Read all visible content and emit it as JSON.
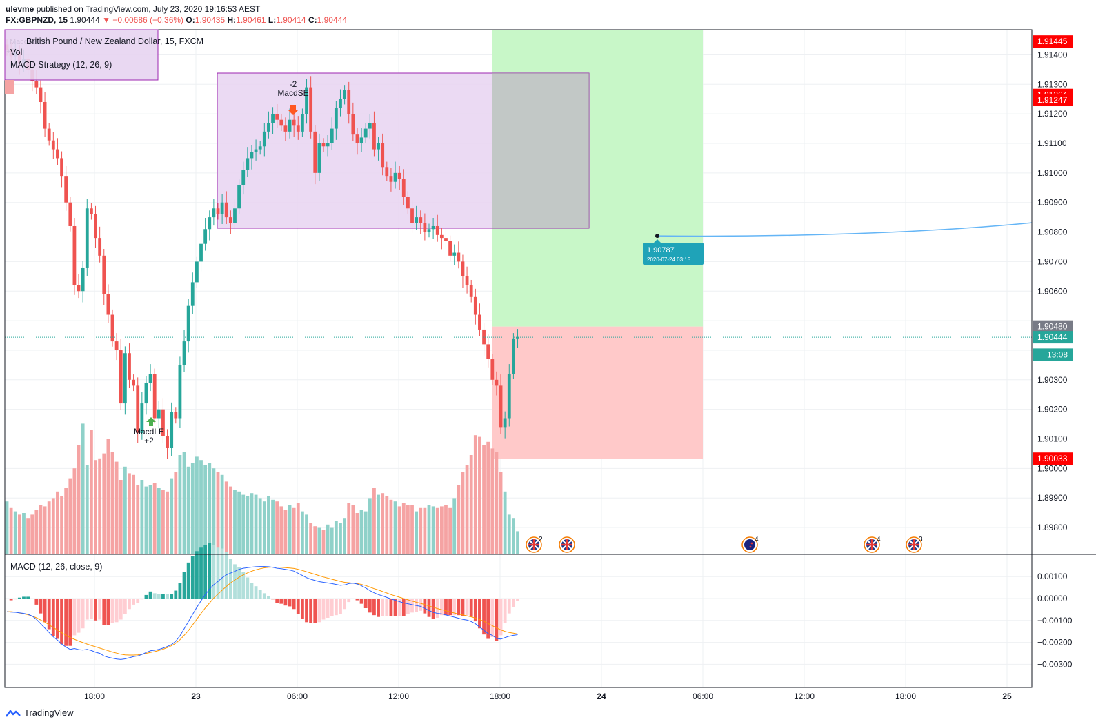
{
  "header": {
    "username": "ulevme",
    "published_text": "published on TradingView.com, July 23, 2020 19:16:53 AEST",
    "symbol": "FX:GBPNZD, 15",
    "last": "1.90444",
    "change": "▼ −0.00686 (−0.36%)",
    "o_label": "O:",
    "o_value": "1.90435",
    "h_label": "H:",
    "h_value": "1.90461",
    "l_label": "L:",
    "l_value": "1.90414",
    "c_label": "C:",
    "c_value": "1.90444"
  },
  "legend": {
    "instrument": "British Pound / New Zealand Dollar, 15, FXCM",
    "vol": "Vol",
    "strategy": "MACD Strategy (12, 26, 9)",
    "macd": "MACD (12, 26, close, 9)"
  },
  "chart_data": [
    {
      "type": "candlestick",
      "title": "British Pound / New Zealand Dollar, 15, FXCM",
      "y_ticks": [
        "1.91400",
        "1.91300",
        "1.91200",
        "1.91100",
        "1.91000",
        "1.90900",
        "1.90800",
        "1.90700",
        "1.90600",
        "1.90300",
        "1.90200",
        "1.90100",
        "1.90000",
        "1.89900",
        "1.89800"
      ],
      "x_ticks": [
        "18:00",
        "23",
        "06:00",
        "12:00",
        "18:00",
        "24",
        "06:00",
        "12:00",
        "18:00",
        "25"
      ],
      "price_labels": [
        {
          "text": "1.91445",
          "value": 1.91445,
          "color": "#ff0000"
        },
        {
          "text": "1.91264",
          "value": 1.91264,
          "color": "#ff0000"
        },
        {
          "text": "1.91247",
          "value": 1.91247,
          "color": "#ff0000"
        },
        {
          "text": "1.90480",
          "value": 1.9048,
          "color": "#787b86"
        },
        {
          "text": "1.90444",
          "value": 1.90444,
          "color": "#26a69a"
        },
        {
          "text": "13:08",
          "value": 1.90385,
          "color": "#26a69a"
        },
        {
          "text": "1.90033",
          "value": 1.90033,
          "color": "#ff0000"
        }
      ],
      "current_price": 1.90444,
      "closes": [
        1.91415,
        1.91395,
        1.9141,
        1.9137,
        1.91385,
        1.9135,
        1.9131,
        1.9129,
        1.9124,
        1.9115,
        1.9111,
        1.9108,
        1.9105,
        1.9099,
        1.909,
        1.9082,
        1.9062,
        1.906,
        1.9068,
        1.9088,
        1.9086,
        1.9078,
        1.9072,
        1.9059,
        1.9052,
        1.9043,
        1.904,
        1.9022,
        1.9039,
        1.903,
        1.9028,
        1.9012,
        1.9022,
        1.9029,
        1.9032,
        1.9017,
        1.902,
        1.9011,
        1.9007,
        1.9019,
        1.9017,
        1.9035,
        1.9043,
        1.9055,
        1.9063,
        1.907,
        1.9076,
        1.9081,
        1.9085,
        1.9088,
        1.9086,
        1.909,
        1.9085,
        1.9083,
        1.9088,
        1.9096,
        1.9101,
        1.9105,
        1.9107,
        1.9108,
        1.9109,
        1.9114,
        1.9117,
        1.912,
        1.9118,
        1.9116,
        1.9114,
        1.9118,
        1.9116,
        1.9114,
        1.912,
        1.9129,
        1.9114,
        1.91,
        1.911,
        1.9109,
        1.911,
        1.9115,
        1.9122,
        1.9125,
        1.9128,
        1.912,
        1.9113,
        1.911,
        1.9112,
        1.9115,
        1.9117,
        1.9108,
        1.911,
        1.9102,
        1.9099,
        1.9097,
        1.91,
        1.9098,
        1.9092,
        1.9088,
        1.9083,
        1.9085,
        1.9083,
        1.908,
        1.9081,
        1.9082,
        1.9079,
        1.9078,
        1.9077,
        1.9072,
        1.9073,
        1.907,
        1.9065,
        1.9062,
        1.9058,
        1.9052,
        1.9047,
        1.9042,
        1.9037,
        1.903,
        1.9028,
        1.9014,
        1.9017,
        1.9032,
        1.9044,
        1.90444
      ],
      "volumes": [
        160,
        140,
        130,
        120,
        125,
        110,
        120,
        135,
        150,
        145,
        160,
        170,
        190,
        175,
        200,
        230,
        260,
        330,
        395,
        270,
        375,
        285,
        290,
        305,
        350,
        310,
        280,
        225,
        265,
        245,
        240,
        210,
        225,
        205,
        210,
        215,
        200,
        195,
        190,
        230,
        250,
        300,
        310,
        265,
        275,
        295,
        285,
        270,
        275,
        260,
        250,
        240,
        220,
        205,
        195,
        190,
        180,
        175,
        185,
        180,
        170,
        160,
        175,
        165,
        160,
        145,
        135,
        150,
        140,
        155,
        130,
        120,
        95,
        85,
        80,
        75,
        90,
        80,
        100,
        95,
        110,
        155,
        150,
        125,
        135,
        130,
        170,
        200,
        180,
        185,
        175,
        165,
        160,
        145,
        155,
        150,
        150,
        130,
        140,
        140,
        150,
        145,
        140,
        145,
        150,
        140,
        170,
        210,
        250,
        270,
        300,
        360,
        355,
        330,
        340,
        320,
        310,
        250,
        190,
        120,
        110,
        70
      ],
      "macd": [
        -0.0006,
        -0.00062,
        -0.00063,
        -0.00065,
        -0.00068,
        -0.00072,
        -0.0008,
        -0.00095,
        -0.00115,
        -0.00135,
        -0.00155,
        -0.00175,
        -0.0019,
        -0.00208,
        -0.00222,
        -0.00232,
        -0.00228,
        -0.00233,
        -0.00235,
        -0.00232,
        -0.00237,
        -0.00245,
        -0.0025,
        -0.00262,
        -0.00268,
        -0.00272,
        -0.00276,
        -0.00278,
        -0.00275,
        -0.0027,
        -0.00265,
        -0.00262,
        -0.00255,
        -0.00246,
        -0.00238,
        -0.00236,
        -0.00232,
        -0.00226,
        -0.00219,
        -0.0021,
        -0.00195,
        -0.0017,
        -0.00138,
        -0.00105,
        -0.00072,
        -0.0004,
        -0.0001,
        0.00018,
        0.00043,
        0.00063,
        0.00078,
        0.00095,
        0.00108,
        0.00116,
        0.00124,
        0.00133,
        0.00138,
        0.00141,
        0.00143,
        0.00145,
        0.00146,
        0.00146,
        0.00145,
        0.00142,
        0.00138,
        0.00136,
        0.00133,
        0.0013,
        0.00125,
        0.00115,
        0.00105,
        0.00095,
        0.00088,
        0.00082,
        0.00077,
        0.00074,
        0.00071,
        0.00068,
        0.00064,
        0.0006,
        0.00062,
        0.00068,
        0.0007,
        0.00066,
        0.00058,
        0.00048,
        0.00036,
        0.00026,
        0.00018,
        0.00012,
        5e-05,
        -2e-05,
        -8e-05,
        -0.00014,
        -0.0002,
        -0.00024,
        -0.00028,
        -0.00032,
        -0.00036,
        -0.00045,
        -0.00055,
        -0.00063,
        -0.00068,
        -0.0007,
        -0.00075,
        -0.0008,
        -0.00085,
        -0.0009,
        -0.00095,
        -0.00098,
        -0.00105,
        -0.00115,
        -0.0013,
        -0.00145,
        -0.0016,
        -0.00168,
        -0.00182,
        -0.00185,
        -0.00178,
        -0.00172,
        -0.00168,
        -0.00165
      ],
      "signal": [
        -0.0006,
        -0.0006,
        -0.00062,
        -0.00066,
        -0.0007,
        -0.00074,
        -0.0008,
        -0.00088,
        -0.00098,
        -0.00108,
        -0.0012,
        -0.00132,
        -0.00144,
        -0.00156,
        -0.00168,
        -0.00178,
        -0.00186,
        -0.00194,
        -0.00201,
        -0.00208,
        -0.00214,
        -0.0022,
        -0.00226,
        -0.00232,
        -0.00238,
        -0.00244,
        -0.00249,
        -0.00254,
        -0.00257,
        -0.00258,
        -0.00258,
        -0.00257,
        -0.00254,
        -0.0025,
        -0.00246,
        -0.00242,
        -0.00237,
        -0.00231,
        -0.00224,
        -0.00215,
        -0.00204,
        -0.00188,
        -0.00168,
        -0.00146,
        -0.0012,
        -0.00094,
        -0.00068,
        -0.00043,
        -0.0002,
        2e-05,
        0.0002,
        0.00038,
        0.00055,
        0.00071,
        0.00085,
        0.00097,
        0.00108,
        0.00117,
        0.00125,
        0.00131,
        0.00136,
        0.0014,
        0.00142,
        0.00143,
        0.00143,
        0.00142,
        0.00141,
        0.00139,
        0.00137,
        0.00133,
        0.00128,
        0.00122,
        0.00116,
        0.0011,
        0.00104,
        0.00098,
        0.00093,
        0.00088,
        0.00083,
        0.00078,
        0.00074,
        0.00072,
        0.0007,
        0.00068,
        0.00064,
        0.00059,
        0.00052,
        0.00045,
        0.00039,
        0.00032,
        0.00025,
        0.00018,
        0.00012,
        6e-05,
        0.0,
        -6e-05,
        -0.00012,
        -0.00017,
        -0.00022,
        -0.00028,
        -0.00034,
        -0.0004,
        -0.00046,
        -0.00051,
        -0.00056,
        -0.00061,
        -0.00066,
        -0.00071,
        -0.00075,
        -0.00079,
        -0.00084,
        -0.00089,
        -0.00096,
        -0.00104,
        -0.00114,
        -0.00124,
        -0.00134,
        -0.00143,
        -0.0015,
        -0.00155,
        -0.00158,
        -0.00162
      ]
    },
    {
      "type": "line",
      "title": "MACD (12, 26, close, 9)",
      "y_ticks": [
        "0.00100",
        "0.00000",
        "−0.00100",
        "−0.00200",
        "−0.00300"
      ]
    }
  ],
  "annotations": {
    "short_signal": {
      "count": "-2",
      "label": "MacdSE"
    },
    "long_signal": {
      "label": "MacdLE",
      "count": "+2"
    },
    "corner_signal": {
      "label": "MacdLE",
      "count": "+2"
    },
    "forecast": {
      "price": "1.90787",
      "datetime": "2020-07-24 03:15"
    },
    "events": [
      {
        "flag": "uk-flag-icon",
        "count": "2"
      },
      {
        "flag": "uk-flag-icon",
        "count": ""
      },
      {
        "flag": "nz-flag-icon",
        "count": "4"
      },
      {
        "flag": "uk-flag-icon",
        "count": "4"
      },
      {
        "flag": "uk-flag-icon",
        "count": "3"
      }
    ]
  },
  "colors": {
    "up": "#26a69a",
    "down": "#ef5350",
    "vol_up": "#8fd1c9",
    "vol_down": "#f5a3a3",
    "rect_fill": "#e7d4f1",
    "rect_border": "#9c27b0",
    "profit": "#c8f7c8",
    "loss": "#ffc9c9",
    "forecast": "#2196f3",
    "forecast_label": "#1fa3b8",
    "macd_line": "#2962ff",
    "signal_line": "#ff9800"
  },
  "footer": {
    "brand": "TradingView"
  }
}
